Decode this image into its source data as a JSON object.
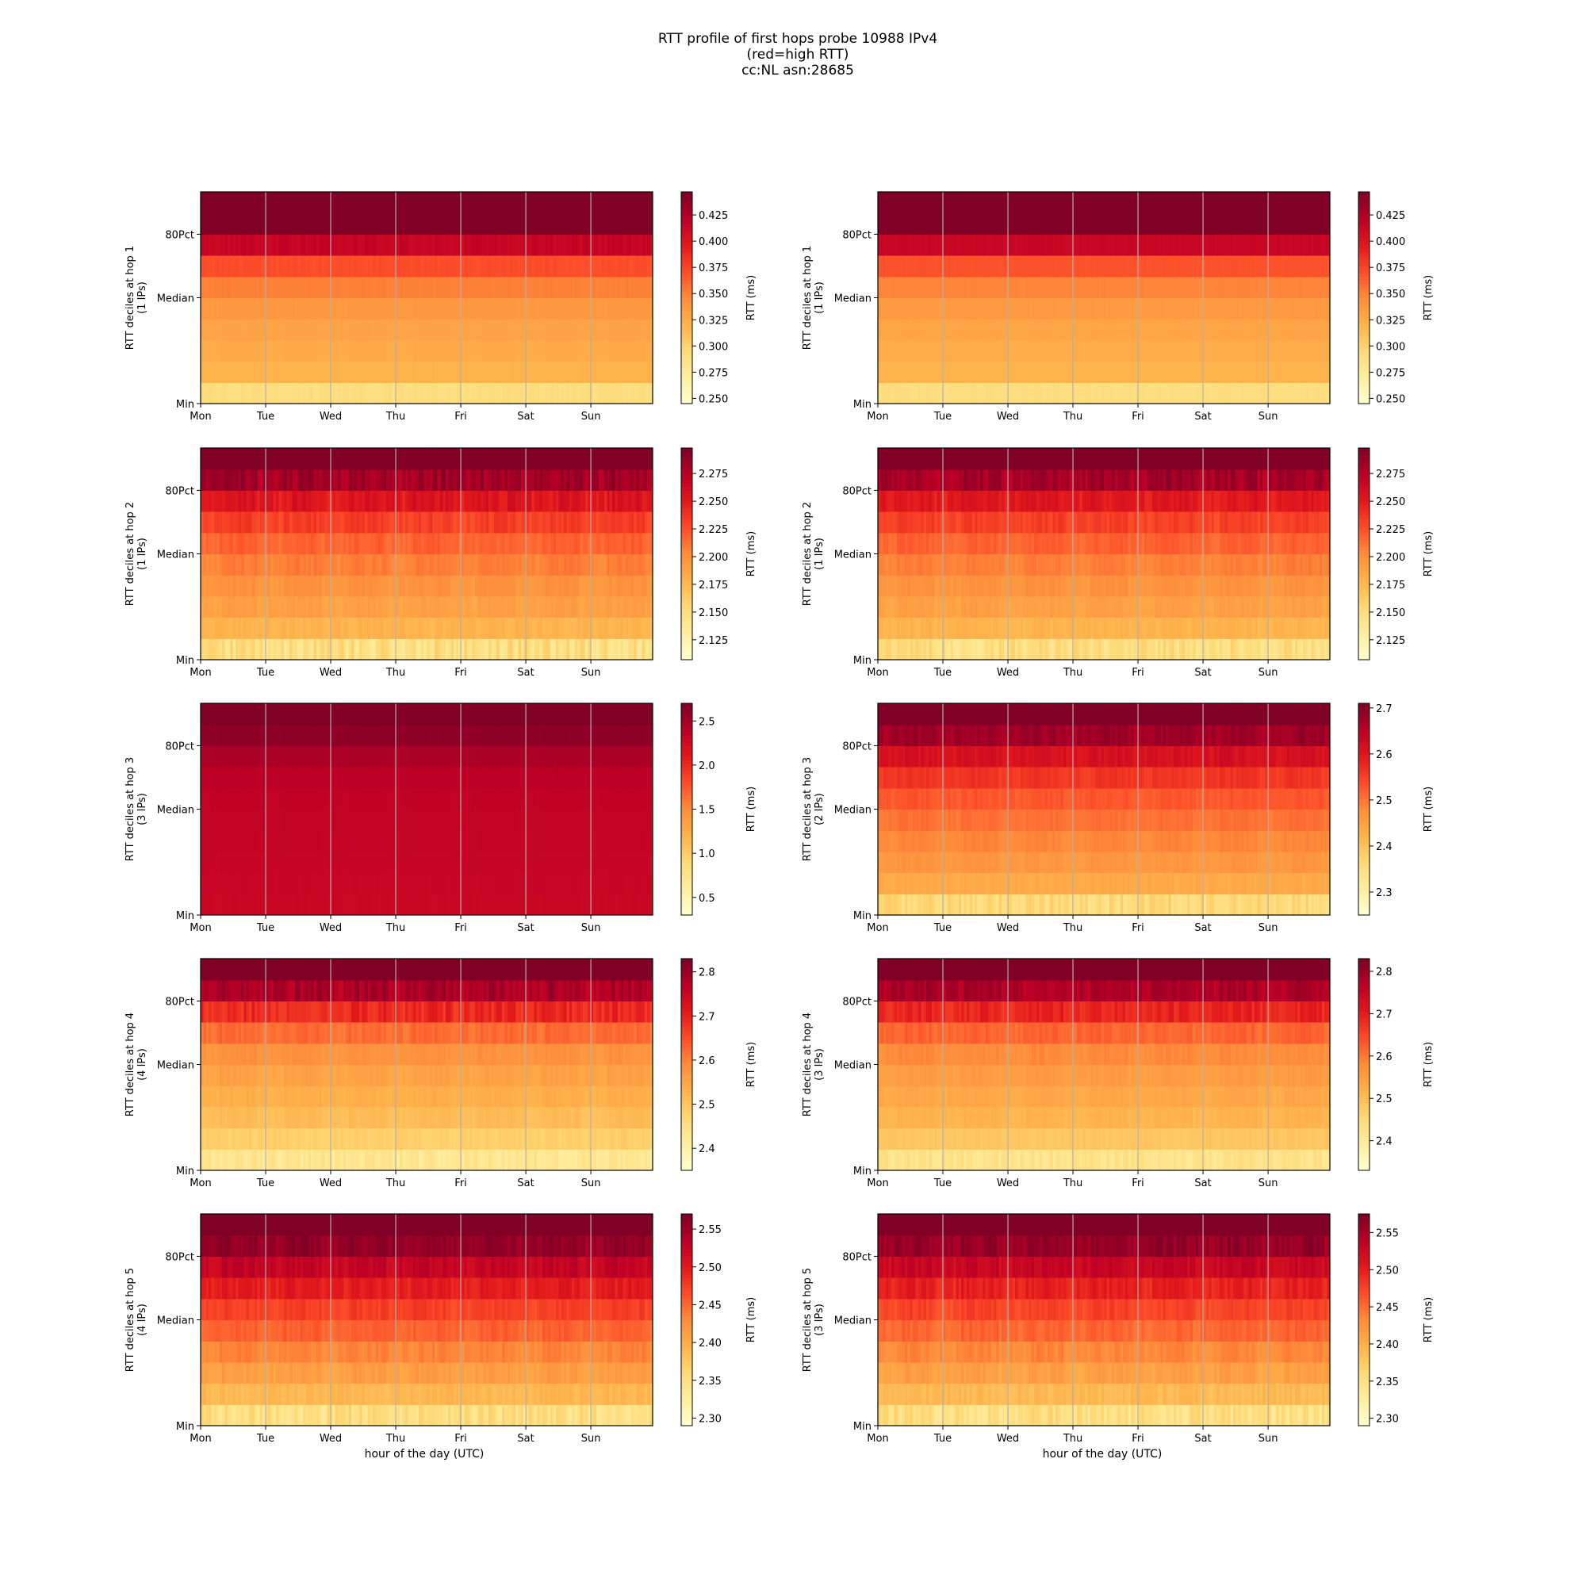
{
  "figure": {
    "title_lines": [
      "RTT profile of first hops probe 10988 IPv4",
      "(red=high RTT)",
      "cc:NL asn:28685"
    ],
    "xlabel": "hour of the day (UTC)"
  },
  "colors": {
    "colormap": [
      "#ffffcc",
      "#ffeda0",
      "#fed976",
      "#feb24c",
      "#fd8d3c",
      "#fc4e2a",
      "#e31a1c",
      "#bd0026",
      "#800026"
    ],
    "grid": "#b0b0b0",
    "frame": "#000000"
  },
  "chart_data": [
    {
      "type": "heatmap",
      "hop": 1,
      "column": "left",
      "ylabel": "RTT deciles at hop 1",
      "ylabel2": "(1 IPs)",
      "x_ticks": [
        "Mon",
        "Tue",
        "Wed",
        "Thu",
        "Fri",
        "Sat",
        "Sun"
      ],
      "y_ticks": [
        "Min",
        "Median",
        "80Pct"
      ],
      "colorbar": {
        "label": "RTT (ms)",
        "range": [
          0.245,
          0.447
        ],
        "ticks": [
          "0.250",
          "0.275",
          "0.300",
          "0.325",
          "0.350",
          "0.375",
          "0.400",
          "0.425"
        ],
        "tick_values": [
          0.25,
          0.275,
          0.3,
          0.325,
          0.35,
          0.375,
          0.4,
          0.425
        ]
      },
      "decile_rtt_ms": [
        0.262,
        0.318,
        0.323,
        0.328,
        0.333,
        0.343,
        0.358,
        0.385,
        0.447,
        0.447,
        0.447
      ],
      "noise": 0.12
    },
    {
      "type": "heatmap",
      "hop": 1,
      "column": "right",
      "ylabel": "RTT deciles at hop 1",
      "ylabel2": "(1 IPs)",
      "x_ticks": [
        "Mon",
        "Tue",
        "Wed",
        "Thu",
        "Fri",
        "Sat",
        "Sun"
      ],
      "y_ticks": [
        "Min",
        "Median",
        "80Pct"
      ],
      "colorbar": {
        "label": "RTT (ms)",
        "range": [
          0.245,
          0.447
        ],
        "ticks": [
          "0.250",
          "0.275",
          "0.300",
          "0.325",
          "0.350",
          "0.375",
          "0.400",
          "0.425"
        ],
        "tick_values": [
          0.25,
          0.275,
          0.3,
          0.325,
          0.35,
          0.375,
          0.4,
          0.425
        ]
      },
      "decile_rtt_ms": [
        0.262,
        0.318,
        0.322,
        0.327,
        0.332,
        0.342,
        0.356,
        0.383,
        0.447,
        0.447,
        0.447
      ],
      "noise": 0.05
    },
    {
      "type": "heatmap",
      "hop": 2,
      "column": "left",
      "ylabel": "RTT deciles at hop 2",
      "ylabel2": "(1 IPs)",
      "x_ticks": [
        "Mon",
        "Tue",
        "Wed",
        "Thu",
        "Fri",
        "Sat",
        "Sun"
      ],
      "y_ticks": [
        "Min",
        "Median",
        "80Pct"
      ],
      "colorbar": {
        "label": "RTT (ms)",
        "range": [
          2.107,
          2.298
        ],
        "ticks": [
          "2.125",
          "2.150",
          "2.175",
          "2.200",
          "2.225",
          "2.250",
          "2.275"
        ],
        "tick_values": [
          2.125,
          2.15,
          2.175,
          2.2,
          2.225,
          2.25,
          2.275
        ]
      },
      "decile_rtt_ms": [
        2.125,
        2.172,
        2.183,
        2.192,
        2.2,
        2.21,
        2.222,
        2.238,
        2.265,
        2.298,
        2.298
      ],
      "noise": 0.55
    },
    {
      "type": "heatmap",
      "hop": 2,
      "column": "right",
      "ylabel": "RTT deciles at hop 2",
      "ylabel2": "(1 IPs)",
      "x_ticks": [
        "Mon",
        "Tue",
        "Wed",
        "Thu",
        "Fri",
        "Sat",
        "Sun"
      ],
      "y_ticks": [
        "Min",
        "Median",
        "80Pct"
      ],
      "colorbar": {
        "label": "RTT (ms)",
        "range": [
          2.107,
          2.298
        ],
        "ticks": [
          "2.125",
          "2.150",
          "2.175",
          "2.200",
          "2.225",
          "2.250",
          "2.275"
        ],
        "tick_values": [
          2.125,
          2.15,
          2.175,
          2.2,
          2.225,
          2.25,
          2.275
        ]
      },
      "decile_rtt_ms": [
        2.125,
        2.172,
        2.183,
        2.192,
        2.2,
        2.21,
        2.222,
        2.238,
        2.262,
        2.298,
        2.298
      ],
      "noise": 0.5
    },
    {
      "type": "heatmap",
      "hop": 3,
      "column": "left",
      "ylabel": "RTT deciles at hop 3",
      "ylabel2": "(3 IPs)",
      "x_ticks": [
        "Mon",
        "Tue",
        "Wed",
        "Thu",
        "Fri",
        "Sat",
        "Sun"
      ],
      "y_ticks": [
        "Min",
        "Median",
        "80Pct"
      ],
      "colorbar": {
        "label": "RTT (ms)",
        "range": [
          0.3,
          2.7
        ],
        "ticks": [
          "0.5",
          "1.0",
          "1.5",
          "2.0",
          "2.5"
        ],
        "tick_values": [
          0.5,
          1.0,
          1.5,
          2.0,
          2.5
        ]
      },
      "decile_rtt_ms": [
        2.3,
        2.32,
        2.33,
        2.34,
        2.35,
        2.36,
        2.38,
        2.42,
        2.55,
        2.7,
        2.7
      ],
      "noise": 0.08
    },
    {
      "type": "heatmap",
      "hop": 3,
      "column": "right",
      "ylabel": "RTT deciles at hop 3",
      "ylabel2": "(2 IPs)",
      "x_ticks": [
        "Mon",
        "Tue",
        "Wed",
        "Thu",
        "Fri",
        "Sat",
        "Sun"
      ],
      "y_ticks": [
        "Min",
        "Median",
        "80Pct"
      ],
      "colorbar": {
        "label": "RTT (ms)",
        "range": [
          2.25,
          2.71
        ],
        "ticks": [
          "2.3",
          "2.4",
          "2.5",
          "2.6",
          "2.7"
        ],
        "tick_values": [
          2.3,
          2.4,
          2.5,
          2.6,
          2.7
        ]
      },
      "decile_rtt_ms": [
        2.3,
        2.42,
        2.45,
        2.47,
        2.49,
        2.51,
        2.54,
        2.58,
        2.64,
        2.71,
        2.71
      ],
      "noise": 0.4
    },
    {
      "type": "heatmap",
      "hop": 4,
      "column": "left",
      "ylabel": "RTT deciles at hop 4",
      "ylabel2": "(4 IPs)",
      "x_ticks": [
        "Mon",
        "Tue",
        "Wed",
        "Thu",
        "Fri",
        "Sat",
        "Sun"
      ],
      "y_ticks": [
        "Min",
        "Median",
        "80Pct"
      ],
      "colorbar": {
        "label": "RTT (ms)",
        "range": [
          2.35,
          2.83
        ],
        "ticks": [
          "2.4",
          "2.5",
          "2.6",
          "2.7",
          "2.8"
        ],
        "tick_values": [
          2.4,
          2.5,
          2.6,
          2.7,
          2.8
        ]
      },
      "decile_rtt_ms": [
        2.39,
        2.47,
        2.5,
        2.52,
        2.54,
        2.56,
        2.59,
        2.64,
        2.73,
        2.83,
        2.83
      ],
      "noise": 0.45
    },
    {
      "type": "heatmap",
      "hop": 4,
      "column": "right",
      "ylabel": "RTT deciles at hop 4",
      "ylabel2": "(3 IPs)",
      "x_ticks": [
        "Mon",
        "Tue",
        "Wed",
        "Thu",
        "Fri",
        "Sat",
        "Sun"
      ],
      "y_ticks": [
        "Min",
        "Median",
        "80Pct"
      ],
      "colorbar": {
        "label": "RTT (ms)",
        "range": [
          2.33,
          2.83
        ],
        "ticks": [
          "2.4",
          "2.5",
          "2.6",
          "2.7",
          "2.8"
        ],
        "tick_values": [
          2.4,
          2.5,
          2.6,
          2.7,
          2.8
        ]
      },
      "decile_rtt_ms": [
        2.38,
        2.47,
        2.5,
        2.52,
        2.54,
        2.56,
        2.59,
        2.64,
        2.73,
        2.83,
        2.83
      ],
      "noise": 0.4
    },
    {
      "type": "heatmap",
      "hop": 5,
      "column": "left",
      "ylabel": "RTT deciles at hop 5",
      "ylabel2": "(4 IPs)",
      "x_ticks": [
        "Mon",
        "Tue",
        "Wed",
        "Thu",
        "Fri",
        "Sat",
        "Sun"
      ],
      "y_ticks": [
        "Min",
        "Median",
        "80Pct"
      ],
      "colorbar": {
        "label": "RTT (ms)",
        "range": [
          2.29,
          2.57
        ],
        "ticks": [
          "2.30",
          "2.35",
          "2.40",
          "2.45",
          "2.50",
          "2.55"
        ],
        "tick_values": [
          2.3,
          2.35,
          2.4,
          2.45,
          2.5,
          2.55
        ]
      },
      "decile_rtt_ms": [
        2.32,
        2.38,
        2.4,
        2.42,
        2.44,
        2.46,
        2.48,
        2.51,
        2.54,
        2.57,
        2.57
      ],
      "noise": 0.55
    },
    {
      "type": "heatmap",
      "hop": 5,
      "column": "right",
      "ylabel": "RTT deciles at hop 5",
      "ylabel2": "(3 IPs)",
      "x_ticks": [
        "Mon",
        "Tue",
        "Wed",
        "Thu",
        "Fri",
        "Sat",
        "Sun"
      ],
      "y_ticks": [
        "Min",
        "Median",
        "80Pct"
      ],
      "colorbar": {
        "label": "RTT (ms)",
        "range": [
          2.29,
          2.575
        ],
        "ticks": [
          "2.30",
          "2.35",
          "2.40",
          "2.45",
          "2.50",
          "2.55"
        ],
        "tick_values": [
          2.3,
          2.35,
          2.4,
          2.45,
          2.5,
          2.55
        ]
      },
      "decile_rtt_ms": [
        2.32,
        2.38,
        2.4,
        2.42,
        2.44,
        2.46,
        2.48,
        2.51,
        2.54,
        2.575,
        2.575
      ],
      "noise": 0.6
    }
  ]
}
